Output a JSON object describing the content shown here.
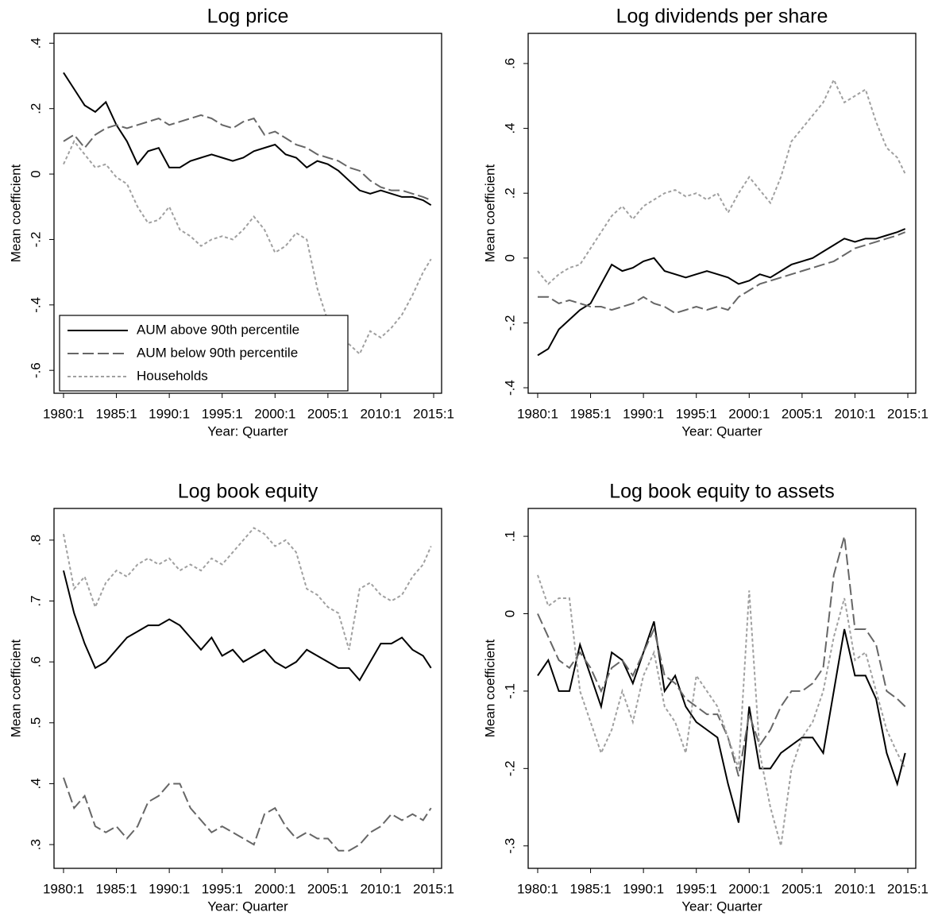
{
  "chart_data": [
    {
      "type": "line",
      "title": "Log price",
      "xlabel": "Year: Quarter",
      "ylabel": "Mean coefficient",
      "x": [
        1980,
        1981,
        1982,
        1983,
        1984,
        1985,
        1986,
        1987,
        1988,
        1989,
        1990,
        1991,
        1992,
        1993,
        1994,
        1995,
        1996,
        1997,
        1998,
        1999,
        2000,
        2001,
        2002,
        2003,
        2004,
        2005,
        2006,
        2007,
        2008,
        2009,
        2010,
        2011,
        2012,
        2013,
        2014,
        2014.75
      ],
      "xlim": [
        1979.1,
        2015.75
      ],
      "xticks": [
        {
          "value": 1980,
          "label": "1980:1"
        },
        {
          "value": 1985,
          "label": "1985:1"
        },
        {
          "value": 1990,
          "label": "1990:1"
        },
        {
          "value": 1995,
          "label": "1995:1"
        },
        {
          "value": 2000,
          "label": "2000:1"
        },
        {
          "value": 2005,
          "label": "2005:1"
        },
        {
          "value": 2010,
          "label": "2010:1"
        },
        {
          "value": 2015,
          "label": "2015:1"
        }
      ],
      "ylim": [
        -0.67,
        0.43
      ],
      "yticks": [
        {
          "value": 0.4,
          "label": ".4"
        },
        {
          "value": 0.2,
          "label": ".2"
        },
        0,
        {
          "value": -0.2,
          "label": "-.2"
        },
        {
          "value": -0.4,
          "label": "-.4"
        },
        {
          "value": -0.6,
          "label": "-.6"
        }
      ],
      "legend": "lower left",
      "series": [
        {
          "name": "AUM above 90th percentile",
          "color": "#000000",
          "style": "solid",
          "values": [
            0.31,
            0.26,
            0.21,
            0.19,
            0.22,
            0.15,
            0.1,
            0.03,
            0.07,
            0.08,
            0.02,
            0.02,
            0.04,
            0.05,
            0.06,
            0.05,
            0.04,
            0.05,
            0.07,
            0.08,
            0.09,
            0.06,
            0.05,
            0.02,
            0.04,
            0.03,
            0.01,
            -0.02,
            -0.05,
            -0.06,
            -0.05,
            -0.06,
            -0.07,
            -0.07,
            -0.08,
            -0.095
          ]
        },
        {
          "name": "AUM below 90th percentile",
          "color": "#666666",
          "style": "dashed",
          "values": [
            0.1,
            0.12,
            0.08,
            0.12,
            0.14,
            0.15,
            0.14,
            0.15,
            0.16,
            0.17,
            0.15,
            0.16,
            0.17,
            0.18,
            0.17,
            0.15,
            0.14,
            0.16,
            0.17,
            0.12,
            0.13,
            0.11,
            0.09,
            0.08,
            0.06,
            0.05,
            0.04,
            0.02,
            0.01,
            -0.02,
            -0.04,
            -0.05,
            -0.05,
            -0.06,
            -0.07,
            -0.08
          ]
        },
        {
          "name": "Households",
          "color": "#a0a0a0",
          "style": "dotted",
          "values": [
            0.03,
            0.1,
            0.06,
            0.02,
            0.03,
            -0.01,
            -0.03,
            -0.1,
            -0.15,
            -0.14,
            -0.1,
            -0.17,
            -0.19,
            -0.22,
            -0.2,
            -0.19,
            -0.2,
            -0.17,
            -0.13,
            -0.17,
            -0.24,
            -0.22,
            -0.18,
            -0.2,
            -0.35,
            -0.45,
            -0.47,
            -0.52,
            -0.55,
            -0.48,
            -0.5,
            -0.47,
            -0.43,
            -0.37,
            -0.3,
            -0.26
          ]
        }
      ]
    },
    {
      "type": "line",
      "title": "Log dividends per share",
      "xlabel": "Year: Quarter",
      "ylabel": "Mean coefficient",
      "x": [
        1980,
        1981,
        1982,
        1983,
        1984,
        1985,
        1986,
        1987,
        1988,
        1989,
        1990,
        1991,
        1992,
        1993,
        1994,
        1995,
        1996,
        1997,
        1998,
        1999,
        2000,
        2001,
        2002,
        2003,
        2004,
        2005,
        2006,
        2007,
        2008,
        2009,
        2010,
        2011,
        2012,
        2013,
        2014,
        2014.75
      ],
      "xlim": [
        1979.1,
        2015.75
      ],
      "xticks": [
        {
          "value": 1980,
          "label": "1980:1"
        },
        {
          "value": 1985,
          "label": "1985:1"
        },
        {
          "value": 1990,
          "label": "1990:1"
        },
        {
          "value": 1995,
          "label": "1995:1"
        },
        {
          "value": 2000,
          "label": "2000:1"
        },
        {
          "value": 2005,
          "label": "2005:1"
        },
        {
          "value": 2010,
          "label": "2010:1"
        },
        {
          "value": 2015,
          "label": "2015:1"
        }
      ],
      "ylim": [
        -0.417,
        0.693
      ],
      "yticks": [
        {
          "value": 0.6,
          "label": ".6"
        },
        {
          "value": 0.4,
          "label": ".4"
        },
        {
          "value": 0.2,
          "label": ".2"
        },
        0,
        {
          "value": -0.2,
          "label": "-.2"
        },
        {
          "value": -0.4,
          "label": "-.4"
        }
      ],
      "series": [
        {
          "color": "#000000",
          "style": "solid",
          "values": [
            -0.3,
            -0.28,
            -0.22,
            -0.19,
            -0.16,
            -0.14,
            -0.08,
            -0.02,
            -0.04,
            -0.03,
            -0.01,
            0.0,
            -0.04,
            -0.05,
            -0.06,
            -0.05,
            -0.04,
            -0.05,
            -0.06,
            -0.08,
            -0.07,
            -0.05,
            -0.06,
            -0.04,
            -0.02,
            -0.01,
            0.0,
            0.02,
            0.04,
            0.06,
            0.05,
            0.06,
            0.06,
            0.07,
            0.08,
            0.09
          ]
        },
        {
          "color": "#666666",
          "style": "dashed",
          "values": [
            -0.12,
            -0.12,
            -0.14,
            -0.13,
            -0.14,
            -0.15,
            -0.15,
            -0.16,
            -0.15,
            -0.14,
            -0.12,
            -0.14,
            -0.15,
            -0.17,
            -0.16,
            -0.15,
            -0.16,
            -0.15,
            -0.16,
            -0.12,
            -0.1,
            -0.08,
            -0.07,
            -0.06,
            -0.05,
            -0.04,
            -0.03,
            -0.02,
            -0.01,
            0.01,
            0.03,
            0.04,
            0.05,
            0.06,
            0.07,
            0.08
          ]
        },
        {
          "color": "#a0a0a0",
          "style": "dotted",
          "values": [
            -0.04,
            -0.08,
            -0.05,
            -0.03,
            -0.02,
            0.03,
            0.08,
            0.13,
            0.16,
            0.12,
            0.16,
            0.18,
            0.2,
            0.21,
            0.19,
            0.2,
            0.18,
            0.2,
            0.14,
            0.2,
            0.25,
            0.21,
            0.17,
            0.25,
            0.36,
            0.4,
            0.44,
            0.48,
            0.55,
            0.48,
            0.5,
            0.52,
            0.42,
            0.34,
            0.31,
            0.26
          ]
        }
      ]
    },
    {
      "type": "line",
      "title": "Log book equity",
      "xlabel": "Year: Quarter",
      "ylabel": "Mean coefficient",
      "x": [
        1980,
        1981,
        1982,
        1983,
        1984,
        1985,
        1986,
        1987,
        1988,
        1989,
        1990,
        1991,
        1992,
        1993,
        1994,
        1995,
        1996,
        1997,
        1998,
        1999,
        2000,
        2001,
        2002,
        2003,
        2004,
        2005,
        2006,
        2007,
        2008,
        2009,
        2010,
        2011,
        2012,
        2013,
        2014,
        2014.75
      ],
      "xlim": [
        1979.1,
        2015.75
      ],
      "xticks": [
        {
          "value": 1980,
          "label": "1980:1"
        },
        {
          "value": 1985,
          "label": "1985:1"
        },
        {
          "value": 1990,
          "label": "1990:1"
        },
        {
          "value": 1995,
          "label": "1995:1"
        },
        {
          "value": 2000,
          "label": "2000:1"
        },
        {
          "value": 2005,
          "label": "2005:1"
        },
        {
          "value": 2010,
          "label": "2010:1"
        },
        {
          "value": 2015,
          "label": "2015:1"
        }
      ],
      "ylim": [
        0.261,
        0.852
      ],
      "yticks": [
        {
          "value": 0.8,
          "label": ".8"
        },
        {
          "value": 0.7,
          "label": ".7"
        },
        {
          "value": 0.6,
          "label": ".6"
        },
        {
          "value": 0.5,
          "label": ".5"
        },
        {
          "value": 0.4,
          "label": ".4"
        },
        {
          "value": 0.3,
          "label": ".3"
        }
      ],
      "series": [
        {
          "color": "#000000",
          "style": "solid",
          "values": [
            0.75,
            0.68,
            0.63,
            0.59,
            0.6,
            0.62,
            0.64,
            0.65,
            0.66,
            0.66,
            0.67,
            0.66,
            0.64,
            0.62,
            0.64,
            0.61,
            0.62,
            0.6,
            0.61,
            0.62,
            0.6,
            0.59,
            0.6,
            0.62,
            0.61,
            0.6,
            0.59,
            0.59,
            0.57,
            0.6,
            0.63,
            0.63,
            0.64,
            0.62,
            0.61,
            0.59
          ]
        },
        {
          "color": "#666666",
          "style": "dashed",
          "values": [
            0.41,
            0.36,
            0.38,
            0.33,
            0.32,
            0.33,
            0.31,
            0.33,
            0.37,
            0.38,
            0.4,
            0.4,
            0.36,
            0.34,
            0.32,
            0.33,
            0.32,
            0.31,
            0.3,
            0.35,
            0.36,
            0.33,
            0.31,
            0.32,
            0.31,
            0.31,
            0.29,
            0.29,
            0.3,
            0.32,
            0.33,
            0.35,
            0.34,
            0.35,
            0.34,
            0.36
          ]
        },
        {
          "color": "#a0a0a0",
          "style": "dotted",
          "values": [
            0.81,
            0.72,
            0.74,
            0.69,
            0.73,
            0.75,
            0.74,
            0.76,
            0.77,
            0.76,
            0.77,
            0.75,
            0.76,
            0.75,
            0.77,
            0.76,
            0.78,
            0.8,
            0.82,
            0.81,
            0.79,
            0.8,
            0.78,
            0.72,
            0.71,
            0.69,
            0.68,
            0.62,
            0.72,
            0.73,
            0.71,
            0.7,
            0.71,
            0.74,
            0.76,
            0.79
          ]
        }
      ]
    },
    {
      "type": "line",
      "title": "Log book equity to assets",
      "xlabel": "Year: Quarter",
      "ylabel": "Mean coefficient",
      "x": [
        1980,
        1981,
        1982,
        1983,
        1984,
        1985,
        1986,
        1987,
        1988,
        1989,
        1990,
        1991,
        1992,
        1993,
        1994,
        1995,
        1996,
        1997,
        1998,
        1999,
        2000,
        2001,
        2002,
        2003,
        2004,
        2005,
        2006,
        2007,
        2008,
        2009,
        2010,
        2011,
        2012,
        2013,
        2014,
        2014.75
      ],
      "xlim": [
        1979.1,
        2015.75
      ],
      "xticks": [
        {
          "value": 1980,
          "label": "1980:1"
        },
        {
          "value": 1985,
          "label": "1985:1"
        },
        {
          "value": 1990,
          "label": "1990:1"
        },
        {
          "value": 1995,
          "label": "1995:1"
        },
        {
          "value": 2000,
          "label": "2000:1"
        },
        {
          "value": 2005,
          "label": "2005:1"
        },
        {
          "value": 2010,
          "label": "2010:1"
        },
        {
          "value": 2015,
          "label": "2015:1"
        }
      ],
      "ylim": [
        -0.329,
        0.136
      ],
      "yticks": [
        {
          "value": 0.1,
          "label": ".1"
        },
        0,
        {
          "value": -0.1,
          "label": "-.1"
        },
        {
          "value": -0.2,
          "label": "-.2"
        },
        {
          "value": -0.3,
          "label": "-.3"
        }
      ],
      "series": [
        {
          "color": "#000000",
          "style": "solid",
          "values": [
            -0.08,
            -0.06,
            -0.1,
            -0.1,
            -0.04,
            -0.08,
            -0.12,
            -0.05,
            -0.06,
            -0.09,
            -0.05,
            -0.01,
            -0.1,
            -0.08,
            -0.12,
            -0.14,
            -0.15,
            -0.16,
            -0.22,
            -0.27,
            -0.12,
            -0.2,
            -0.2,
            -0.18,
            -0.17,
            -0.16,
            -0.16,
            -0.18,
            -0.1,
            -0.02,
            -0.08,
            -0.08,
            -0.11,
            -0.18,
            -0.22,
            -0.18
          ]
        },
        {
          "color": "#666666",
          "style": "dashed",
          "values": [
            0.0,
            -0.03,
            -0.06,
            -0.07,
            -0.05,
            -0.07,
            -0.1,
            -0.07,
            -0.06,
            -0.08,
            -0.05,
            -0.02,
            -0.08,
            -0.09,
            -0.11,
            -0.12,
            -0.13,
            -0.13,
            -0.16,
            -0.21,
            -0.13,
            -0.17,
            -0.15,
            -0.12,
            -0.1,
            -0.1,
            -0.09,
            -0.07,
            0.05,
            0.1,
            -0.02,
            -0.02,
            -0.04,
            -0.1,
            -0.11,
            -0.12
          ]
        },
        {
          "color": "#a0a0a0",
          "style": "dotted",
          "values": [
            0.05,
            0.01,
            0.02,
            0.02,
            -0.1,
            -0.14,
            -0.18,
            -0.15,
            -0.1,
            -0.14,
            -0.08,
            -0.05,
            -0.12,
            -0.14,
            -0.18,
            -0.08,
            -0.1,
            -0.12,
            -0.16,
            -0.2,
            0.03,
            -0.18,
            -0.25,
            -0.3,
            -0.2,
            -0.16,
            -0.14,
            -0.1,
            -0.03,
            0.02,
            -0.06,
            -0.05,
            -0.1,
            -0.15,
            -0.18,
            -0.2
          ]
        }
      ]
    }
  ]
}
